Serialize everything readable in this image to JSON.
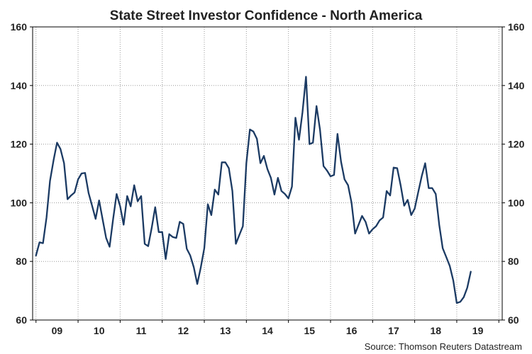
{
  "chart_data": {
    "type": "line",
    "title": "State Street Investor Confidence - North America",
    "source": "Source: Thomson Reuters Datastream",
    "xlabel": "",
    "ylabel": "",
    "ylim": [
      60,
      160
    ],
    "xlim": [
      2008.42,
      2019.58
    ],
    "yticks": [
      60,
      80,
      100,
      120,
      140,
      160
    ],
    "right_axis_ticks": [
      "60",
      "80",
      "100",
      "120",
      "140",
      "160"
    ],
    "x_tick_labels": [
      {
        "label": "09",
        "x": 2009.0
      },
      {
        "label": "10",
        "x": 2010.0
      },
      {
        "label": "11",
        "x": 2011.0
      },
      {
        "label": "12",
        "x": 2012.0
      },
      {
        "label": "13",
        "x": 2013.0
      },
      {
        "label": "14",
        "x": 2014.0
      },
      {
        "label": "15",
        "x": 2015.0
      },
      {
        "label": "16",
        "x": 2016.0
      },
      {
        "label": "17",
        "x": 2017.0
      },
      {
        "label": "18",
        "x": 2018.0
      },
      {
        "label": "19",
        "x": 2019.0
      }
    ],
    "grid": true,
    "series": [
      {
        "name": "Investor Confidence - North America",
        "color": "#1b3a63",
        "x_start": 2008.5,
        "x_step": 0.08333,
        "values": [
          82.0,
          86.5,
          86.2,
          95.0,
          107.5,
          114.5,
          120.5,
          118.3,
          113.5,
          101.2,
          102.5,
          103.5,
          108.0,
          110.0,
          110.2,
          103.3,
          99.0,
          94.5,
          100.8,
          94.3,
          88.0,
          85.0,
          94.5,
          103.0,
          98.8,
          92.5,
          102.3,
          98.8,
          106.0,
          100.5,
          102.3,
          86.0,
          85.2,
          91.5,
          98.5,
          90.0,
          90.0,
          80.8,
          89.3,
          88.3,
          88.0,
          93.5,
          92.8,
          84.3,
          82.0,
          78.0,
          72.3,
          78.0,
          84.5,
          99.5,
          95.8,
          104.5,
          102.8,
          113.8,
          113.8,
          111.8,
          104.0,
          86.0,
          89.0,
          92.0,
          113.5,
          125.0,
          124.3,
          121.8,
          113.5,
          116.0,
          111.5,
          108.5,
          102.8,
          108.5,
          104.0,
          103.0,
          101.5,
          105.5,
          129.0,
          121.5,
          130.8,
          143.0,
          120.0,
          120.5,
          133.0,
          125.0,
          112.5,
          111.0,
          109.0,
          109.5,
          123.5,
          114.0,
          108.0,
          106.0,
          100.0,
          89.5,
          92.5,
          95.5,
          93.5,
          89.5,
          91.0,
          92.0,
          94.0,
          95.0,
          104.0,
          102.5,
          112.0,
          111.8,
          106.0,
          99.0,
          101.0,
          95.8,
          98.0,
          103.5,
          109.0,
          113.5,
          105.0,
          105.0,
          103.0,
          92.5,
          84.5,
          81.5,
          78.5,
          73.5,
          65.8,
          66.2,
          67.8,
          71.0,
          76.5
        ]
      }
    ]
  }
}
